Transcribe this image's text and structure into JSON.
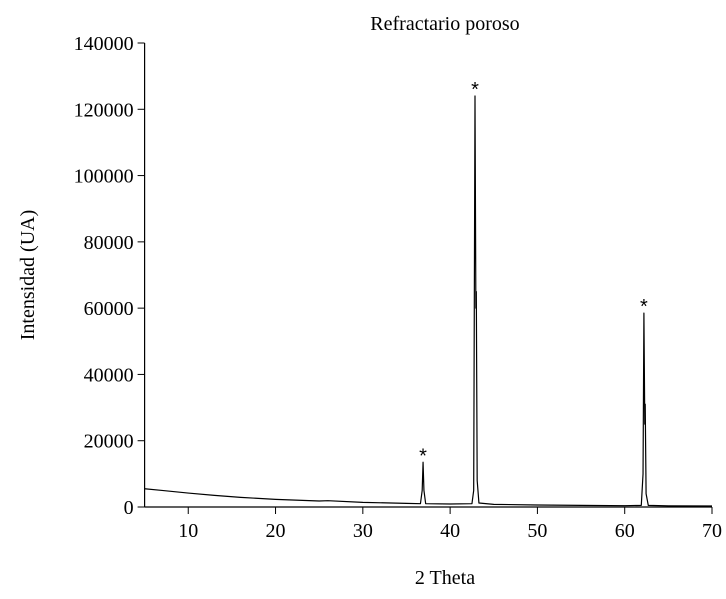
{
  "chart_data": {
    "type": "line",
    "title": "Refractario poroso",
    "xlabel": "2 Theta",
    "ylabel": "Intensidad (UA)",
    "color": "#000000",
    "xlim": [
      5,
      70
    ],
    "ylim": [
      0,
      140000
    ],
    "xticks": [
      10,
      20,
      30,
      40,
      50,
      60,
      70
    ],
    "yticks": [
      0,
      20000,
      40000,
      60000,
      80000,
      100000,
      120000,
      140000
    ],
    "x": [
      5,
      7,
      10,
      13,
      16,
      20,
      25,
      26,
      30,
      35,
      36.6,
      36.8,
      36.9,
      37.0,
      37.2,
      40,
      42.5,
      42.7,
      42.85,
      42.95,
      43.0,
      43.1,
      43.3,
      45,
      50,
      55,
      60,
      61.9,
      62.1,
      62.2,
      62.3,
      62.35,
      62.45,
      62.7,
      65,
      70
    ],
    "values": [
      5500,
      5000,
      4200,
      3500,
      2900,
      2300,
      1800,
      1900,
      1400,
      1100,
      1000,
      5000,
      13500,
      5000,
      1000,
      900,
      1000,
      5000,
      124000,
      60000,
      65000,
      8000,
      1200,
      800,
      600,
      500,
      400,
      500,
      10000,
      58500,
      25000,
      31000,
      4000,
      500,
      350,
      300
    ],
    "annotations": [
      {
        "text": "*",
        "x": 36.9,
        "y": 16500
      },
      {
        "text": "*",
        "x": 42.85,
        "y": 127000
      },
      {
        "text": "*",
        "x": 62.2,
        "y": 61500
      }
    ]
  }
}
